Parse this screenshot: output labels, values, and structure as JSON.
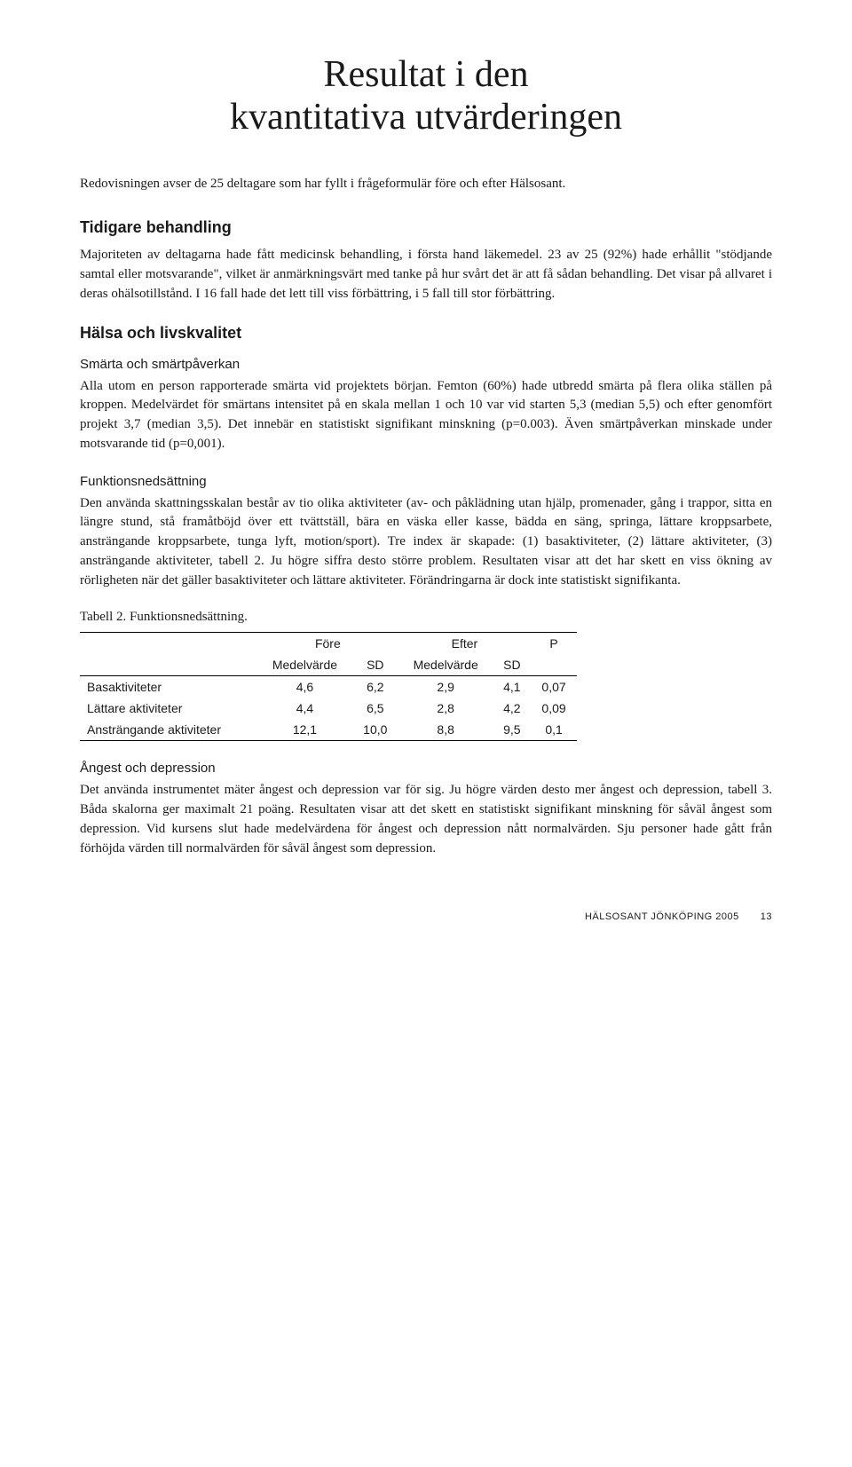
{
  "title": "Resultat i den\nkvantitativa utvärderingen",
  "intro": "Redovisningen avser de 25 deltagare som har fyllt i frågeformulär före och efter Hälsosant.",
  "section1": {
    "heading": "Tidigare behandling",
    "body": "Majoriteten av deltagarna hade fått medicinsk behandling, i första hand läkemedel. 23 av 25 (92%) hade erhållit \"stödjande samtal eller motsvarande\", vilket är anmärkningsvärt med tanke på hur svårt det är att få sådan behandling. Det visar på allvaret i deras ohälsotillstånd. I 16 fall hade det lett till viss förbättring, i 5 fall till stor förbättring."
  },
  "section2": {
    "heading": "Hälsa och livskvalitet",
    "sub1": {
      "heading": "Smärta och smärtpåverkan",
      "body": "Alla utom en person rapporterade smärta vid projektets början. Femton (60%) hade utbredd smärta på flera olika ställen på kroppen. Medelvärdet för smärtans intensitet på en skala mellan 1 och 10 var vid starten 5,3 (median 5,5) och efter genomfört projekt 3,7 (median 3,5). Det innebär en statistiskt signifikant minskning (p=0.003). Även smärtpåverkan minskade under motsvarande tid (p=0,001)."
    },
    "sub2": {
      "heading": "Funktionsnedsättning",
      "body": "Den använda skattningsskalan består av tio olika aktiviteter (av- och påklädning utan hjälp, promenader, gång i trappor, sitta en längre stund, stå framåtböjd över ett tvättställ, bära en väska eller kasse, bädda en säng, springa, lättare kroppsarbete, ansträngande kroppsarbete, tunga lyft, motion/sport). Tre index är skapade: (1) basaktiviteter, (2) lättare aktiviteter, (3) ansträngande aktiviteter, tabell 2. Ju högre siffra desto större problem. Resultaten visar att det har skett en viss ökning av rörligheten när det gäller basaktiviteter och lättare aktiviteter. Förändringarna är dock inte statistiskt signifikanta."
    },
    "table2": {
      "caption": "Tabell 2. Funktionsnedsättning.",
      "top_headers": [
        "",
        "Före",
        "Efter",
        "P"
      ],
      "sub_headers": [
        "",
        "Medelvärde",
        "SD",
        "Medelvärde",
        "SD",
        ""
      ],
      "rows": [
        [
          "Basaktiviteter",
          "4,6",
          "6,2",
          "2,9",
          "4,1",
          "0,07"
        ],
        [
          "Lättare aktiviteter",
          "4,4",
          "6,5",
          "2,8",
          "4,2",
          "0,09"
        ],
        [
          "Ansträngande aktiviteter",
          "12,1",
          "10,0",
          "8,8",
          "9,5",
          "0,1"
        ]
      ]
    },
    "sub3": {
      "heading": "Ångest och depression",
      "body": "Det använda instrumentet mäter ångest och depression var för sig. Ju högre värden desto mer ångest och depression, tabell 3. Båda skalorna ger maximalt 21 poäng. Resultaten visar att det skett en statistiskt signifikant minskning för såväl ångest som depression. Vid kursens slut hade medelvärdena för ångest och depression nått normalvärden. Sju personer hade gått från förhöjda värden till normalvärden för såväl ångest som depression."
    }
  },
  "footer": {
    "publication": "HÄLSOSANT JÖNKÖPING 2005",
    "page": "13"
  }
}
